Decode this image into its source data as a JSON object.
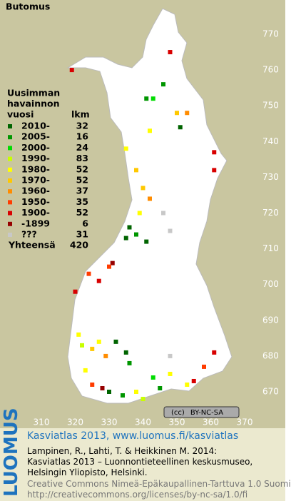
{
  "title": "Butomus",
  "map": {
    "xticks": [
      310,
      320,
      330,
      340,
      350,
      360,
      370
    ],
    "yticks": [
      670,
      680,
      690,
      700,
      710,
      720,
      730,
      740,
      750,
      760,
      770
    ],
    "points": [
      {
        "x": 348,
        "y": 765,
        "period": "1900-"
      },
      {
        "x": 319,
        "y": 760,
        "period": "1900-"
      },
      {
        "x": 341,
        "y": 752,
        "period": "2005-"
      },
      {
        "x": 343,
        "y": 752,
        "period": "2000-"
      },
      {
        "x": 346,
        "y": 756,
        "period": "2005-"
      },
      {
        "x": 350,
        "y": 748,
        "period": "1970-"
      },
      {
        "x": 353,
        "y": 748,
        "period": "1960-"
      },
      {
        "x": 351,
        "y": 744,
        "period": "2010-"
      },
      {
        "x": 342,
        "y": 743,
        "period": "1980-"
      },
      {
        "x": 335,
        "y": 738,
        "period": "1980-"
      },
      {
        "x": 338,
        "y": 732,
        "period": "1970-"
      },
      {
        "x": 361,
        "y": 737,
        "period": "1900-"
      },
      {
        "x": 361,
        "y": 732,
        "period": "1900-"
      },
      {
        "x": 340,
        "y": 727,
        "period": "1970-"
      },
      {
        "x": 342,
        "y": 724,
        "period": "1960-"
      },
      {
        "x": 339,
        "y": 720,
        "period": "1980-"
      },
      {
        "x": 346,
        "y": 720,
        "period": "???"
      },
      {
        "x": 336,
        "y": 716,
        "period": "2010-"
      },
      {
        "x": 335,
        "y": 713,
        "period": "2010-"
      },
      {
        "x": 338,
        "y": 714,
        "period": "2005-"
      },
      {
        "x": 341,
        "y": 712,
        "period": "2010-"
      },
      {
        "x": 348,
        "y": 715,
        "period": "???"
      },
      {
        "x": 331,
        "y": 706,
        "period": "-1899"
      },
      {
        "x": 330,
        "y": 705,
        "period": "1950-"
      },
      {
        "x": 324,
        "y": 703,
        "period": "1950-"
      },
      {
        "x": 327,
        "y": 701,
        "period": "1900-"
      },
      {
        "x": 320,
        "y": 698,
        "period": "1900-"
      },
      {
        "x": 321,
        "y": 686,
        "period": "1980-"
      },
      {
        "x": 322,
        "y": 683,
        "period": "1990-"
      },
      {
        "x": 325,
        "y": 682,
        "period": "1970-"
      },
      {
        "x": 327,
        "y": 684,
        "period": "1980-"
      },
      {
        "x": 332,
        "y": 684,
        "period": "2010-"
      },
      {
        "x": 335,
        "y": 681,
        "period": "2010-"
      },
      {
        "x": 336,
        "y": 678,
        "period": "2005-"
      },
      {
        "x": 329,
        "y": 680,
        "period": "1960-"
      },
      {
        "x": 323,
        "y": 676,
        "period": "1980-"
      },
      {
        "x": 325,
        "y": 672,
        "period": "1950-"
      },
      {
        "x": 330,
        "y": 670,
        "period": "2010-"
      },
      {
        "x": 334,
        "y": 669,
        "period": "2005-"
      },
      {
        "x": 338,
        "y": 670,
        "period": "1980-"
      },
      {
        "x": 343,
        "y": 674,
        "period": "2000-"
      },
      {
        "x": 345,
        "y": 671,
        "period": "2005-"
      },
      {
        "x": 348,
        "y": 675,
        "period": "1980-"
      },
      {
        "x": 353,
        "y": 672,
        "period": "1980-"
      },
      {
        "x": 355,
        "y": 673,
        "period": "1900-"
      },
      {
        "x": 358,
        "y": 677,
        "period": "1950-"
      },
      {
        "x": 348,
        "y": 680,
        "period": "???"
      },
      {
        "x": 361,
        "y": 681,
        "period": "1900-"
      },
      {
        "x": 328,
        "y": 671,
        "period": "-1899"
      },
      {
        "x": 340,
        "y": 668,
        "period": "1990-"
      }
    ]
  },
  "legend": {
    "heading": [
      "Uusimman",
      "havainnon",
      "vuosi"
    ],
    "count_heading": "lkm",
    "items": [
      {
        "label": "2010-",
        "count": 32,
        "color": "#006400"
      },
      {
        "label": "2005-",
        "count": 16,
        "color": "#009600"
      },
      {
        "label": "2000-",
        "count": 24,
        "color": "#00dc00"
      },
      {
        "label": "1990-",
        "count": 83,
        "color": "#c8ff00"
      },
      {
        "label": "1980-",
        "count": 52,
        "color": "#ffff00"
      },
      {
        "label": "1970-",
        "count": 52,
        "color": "#ffc800"
      },
      {
        "label": "1960-",
        "count": 37,
        "color": "#ff8c00"
      },
      {
        "label": "1950-",
        "count": 35,
        "color": "#ff3c00"
      },
      {
        "label": "1900-",
        "count": 52,
        "color": "#d80000"
      },
      {
        "label": "-1899",
        "count": 6,
        "color": "#960000"
      },
      {
        "label": "???",
        "count": 31,
        "color": "#c8c8c8"
      }
    ],
    "total_label": "Yhteensä",
    "total": 420
  },
  "cc_badge": "BY-NC-SA",
  "logo": "LUOMUS",
  "credit_title": "Kasviatlas 2013, www.luomus.fi/kasviatlas",
  "citation": [
    "Lampinen, R., Lahti, T. & Heikkinen M. 2014:",
    "Kasviatlas 2013 – Luonnontieteellinen keskusmuseo,",
    "Helsingin Yliopisto, Helsinki."
  ],
  "license": [
    "Creative Commons Nimeä-Epäkaupallinen-Tarttuva 1.0 Suomi",
    "http://creativecommons.org/licenses/by-nc-sa/1.0/fi"
  ]
}
